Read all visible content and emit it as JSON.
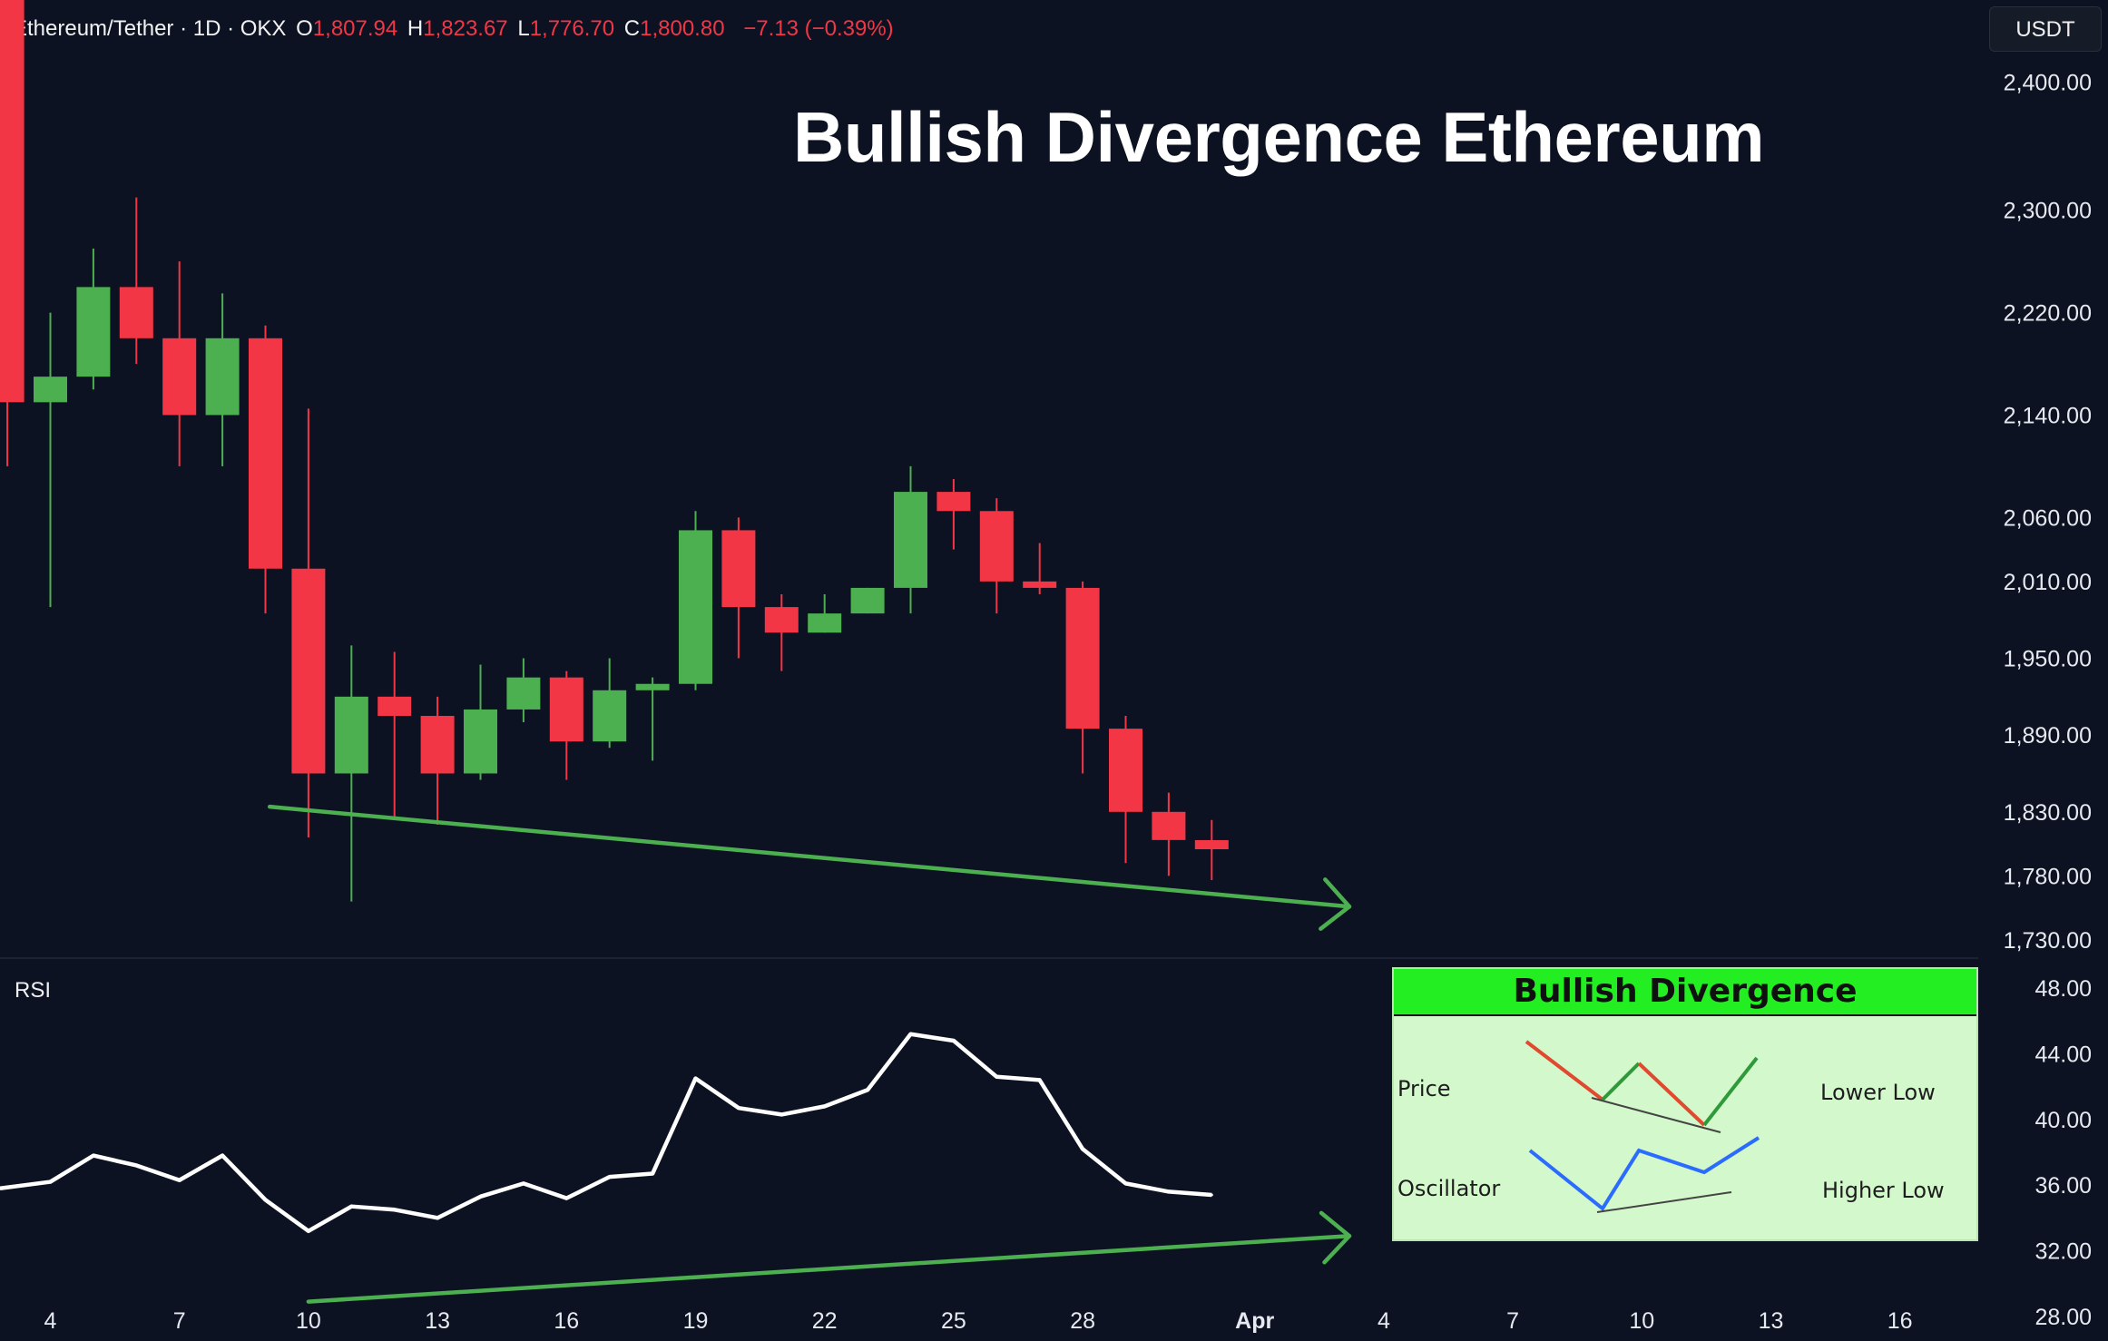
{
  "header": {
    "symbol": "Ethereum/Tether · 1D · OKX",
    "open_label": "O",
    "open": "1,807.94",
    "high_label": "H",
    "high": "1,823.67",
    "low_label": "L",
    "low": "1,776.70",
    "close_label": "C",
    "close": "1,800.80",
    "change": "−7.13 (−0.39%)"
  },
  "currency_button": "USDT",
  "annotation_title": "Bullish Divergence Ethereum",
  "rsi_label": "RSI",
  "inset": {
    "title": "Bullish Divergence",
    "row1_label": "Price",
    "row1_note": "Lower Low",
    "row2_label": "Oscillator",
    "row2_note": "Higher Low"
  },
  "colors": {
    "background": "#0c1222",
    "up": "#4caf50",
    "down": "#f23645",
    "trendline": "#4caf50",
    "rsi_line": "#ffffff"
  },
  "chart_data": [
    {
      "type": "candlestick",
      "title": "",
      "price_axis_ticks": [
        "2,400.00",
        "2,300.00",
        "2,220.00",
        "2,140.00",
        "2,060.00",
        "2,010.00",
        "1,950.00",
        "1,890.00",
        "1,830.00",
        "1,780.00",
        "1,730.00"
      ],
      "x_axis_ticks": [
        "4",
        "7",
        "10",
        "13",
        "16",
        "19",
        "22",
        "25",
        "28",
        "Apr",
        "4",
        "7",
        "10",
        "13",
        "16"
      ],
      "x_axis_tick_day_index": [
        4,
        7,
        10,
        13,
        16,
        19,
        22,
        25,
        28,
        32,
        35,
        38,
        41,
        44,
        47
      ],
      "ylim": [
        1720,
        2460
      ],
      "candles": [
        {
          "day": 3,
          "open": 2480,
          "high": 2490,
          "low": 2100,
          "close": 2150
        },
        {
          "day": 4,
          "open": 2150,
          "high": 2220,
          "low": 1990,
          "close": 2170
        },
        {
          "day": 5,
          "open": 2170,
          "high": 2270,
          "low": 2160,
          "close": 2240
        },
        {
          "day": 6,
          "open": 2240,
          "high": 2310,
          "low": 2180,
          "close": 2200
        },
        {
          "day": 7,
          "open": 2200,
          "high": 2260,
          "low": 2100,
          "close": 2140
        },
        {
          "day": 8,
          "open": 2140,
          "high": 2235,
          "low": 2100,
          "close": 2200
        },
        {
          "day": 9,
          "open": 2200,
          "high": 2210,
          "low": 1985,
          "close": 2020
        },
        {
          "day": 10,
          "open": 2020,
          "high": 2145,
          "low": 1810,
          "close": 1860
        },
        {
          "day": 11,
          "open": 1860,
          "high": 1960,
          "low": 1760,
          "close": 1920
        },
        {
          "day": 12,
          "open": 1920,
          "high": 1955,
          "low": 1825,
          "close": 1905
        },
        {
          "day": 13,
          "open": 1905,
          "high": 1920,
          "low": 1820,
          "close": 1860
        },
        {
          "day": 14,
          "open": 1860,
          "high": 1945,
          "low": 1855,
          "close": 1910
        },
        {
          "day": 15,
          "open": 1910,
          "high": 1950,
          "low": 1900,
          "close": 1935
        },
        {
          "day": 16,
          "open": 1935,
          "high": 1940,
          "low": 1855,
          "close": 1885
        },
        {
          "day": 17,
          "open": 1885,
          "high": 1950,
          "low": 1880,
          "close": 1925
        },
        {
          "day": 18,
          "open": 1925,
          "high": 1935,
          "low": 1870,
          "close": 1930
        },
        {
          "day": 19,
          "open": 1930,
          "high": 2065,
          "low": 1925,
          "close": 2050
        },
        {
          "day": 20,
          "open": 2050,
          "high": 2060,
          "low": 1950,
          "close": 1990
        },
        {
          "day": 21,
          "open": 1990,
          "high": 2000,
          "low": 1940,
          "close": 1970
        },
        {
          "day": 22,
          "open": 1970,
          "high": 2000,
          "low": 1970,
          "close": 1985
        },
        {
          "day": 23,
          "open": 1985,
          "high": 2005,
          "low": 1985,
          "close": 2005
        },
        {
          "day": 24,
          "open": 2005,
          "high": 2100,
          "low": 1985,
          "close": 2080
        },
        {
          "day": 25,
          "open": 2080,
          "high": 2090,
          "low": 2035,
          "close": 2065
        },
        {
          "day": 26,
          "open": 2065,
          "high": 2075,
          "low": 1985,
          "close": 2010
        },
        {
          "day": 27,
          "open": 2010,
          "high": 2040,
          "low": 2000,
          "close": 2005
        },
        {
          "day": 28,
          "open": 2005,
          "high": 2010,
          "low": 1860,
          "close": 1895
        },
        {
          "day": 29,
          "open": 1895,
          "high": 1905,
          "low": 1790,
          "close": 1830
        },
        {
          "day": 30,
          "open": 1830,
          "high": 1845,
          "low": 1780,
          "close": 1808
        },
        {
          "day": 31,
          "open": 1807.94,
          "high": 1823.67,
          "low": 1776.7,
          "close": 1800.8
        }
      ],
      "trendline": {
        "from": {
          "day": 9.1,
          "price": 1834
        },
        "to": {
          "day": 34.2,
          "price": 1756
        },
        "arrow": true
      }
    },
    {
      "type": "line",
      "title": "",
      "name": "RSI",
      "rsi_axis_ticks": [
        "48.00",
        "44.00",
        "40.00",
        "36.00",
        "32.00",
        "28.00"
      ],
      "ylim": [
        26.5,
        49.5
      ],
      "x": [
        3,
        4,
        5,
        6,
        7,
        8,
        9,
        10,
        11,
        12,
        13,
        14,
        15,
        16,
        17,
        18,
        19,
        20,
        21,
        22,
        23,
        24,
        25,
        26,
        27,
        28,
        29,
        30,
        31
      ],
      "y": [
        35.8,
        36.2,
        37.8,
        37.2,
        36.3,
        37.8,
        35.1,
        33.2,
        34.7,
        34.5,
        34.0,
        35.3,
        36.1,
        35.2,
        36.5,
        36.7,
        42.5,
        40.7,
        40.3,
        40.8,
        41.8,
        45.2,
        44.8,
        42.6,
        42.4,
        38.2,
        36.1,
        35.6,
        35.4
      ],
      "trendline": {
        "from": {
          "day": 10,
          "value": 28.9
        },
        "to": {
          "day": 34.2,
          "value": 32.9
        },
        "arrow": true
      }
    }
  ]
}
